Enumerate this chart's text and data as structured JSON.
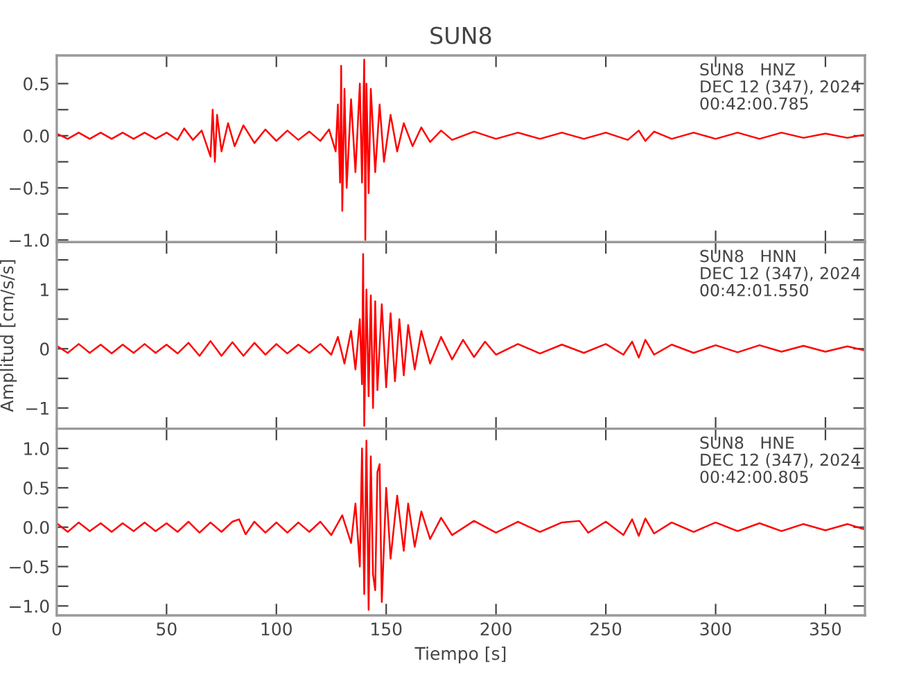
{
  "chart_data": [
    {
      "type": "line",
      "title": "SUN8",
      "tick_labels": "y",
      "xlim": [
        0,
        368
      ],
      "ylim": [
        -1.02,
        0.77
      ],
      "xticks": [
        {
          "value": 0,
          "label": null
        },
        {
          "value": 50,
          "label": null
        },
        {
          "value": 100,
          "label": null
        },
        {
          "value": 150,
          "label": null
        },
        {
          "value": 200,
          "label": null
        },
        {
          "value": 250,
          "label": null
        },
        {
          "value": 300,
          "label": null
        },
        {
          "value": 350,
          "label": null
        }
      ],
      "yticks": [
        {
          "value": 0.5,
          "label": "0.5"
        },
        {
          "value": 0.25,
          "label": null
        },
        {
          "value": 0.0,
          "label": "0.0"
        },
        {
          "value": -0.25,
          "label": null
        },
        {
          "value": -0.5,
          "label": "−0.5"
        },
        {
          "value": -0.75,
          "label": null
        },
        {
          "value": -1.0,
          "label": "−1.0"
        }
      ],
      "annotations": [
        "SUN8   HNZ\nDEC 12 (347), 2024\n00:42:00.785"
      ],
      "series": [
        {
          "color": "#ff0000",
          "x": [
            0,
            5,
            10,
            15,
            20,
            25,
            30,
            35,
            40,
            45,
            50,
            55,
            58,
            62,
            66,
            70,
            71,
            72,
            73,
            75,
            78,
            81,
            85,
            90,
            95,
            100,
            105,
            110,
            115,
            120,
            124,
            127,
            128,
            129,
            129.5,
            130,
            131,
            132,
            134,
            136,
            138,
            139,
            140,
            140.5,
            141,
            142,
            143,
            145,
            147,
            149,
            152,
            155,
            158,
            162,
            166,
            170,
            175,
            180,
            190,
            200,
            210,
            220,
            230,
            240,
            250,
            260,
            265,
            268,
            272,
            280,
            290,
            300,
            310,
            320,
            330,
            340,
            350,
            360,
            368
          ],
          "values": [
            0.02,
            -0.03,
            0.03,
            -0.03,
            0.03,
            -0.03,
            0.03,
            -0.03,
            0.03,
            -0.03,
            0.03,
            -0.04,
            0.07,
            -0.04,
            0.05,
            -0.2,
            0.25,
            -0.25,
            0.2,
            -0.15,
            0.12,
            -0.1,
            0.1,
            -0.07,
            0.06,
            -0.05,
            0.05,
            -0.04,
            0.04,
            -0.05,
            0.06,
            -0.15,
            0.3,
            -0.45,
            0.67,
            -0.72,
            0.45,
            -0.5,
            0.35,
            -0.35,
            0.5,
            -0.45,
            0.73,
            -1.0,
            0.5,
            -0.55,
            0.45,
            -0.35,
            0.3,
            -0.25,
            0.2,
            -0.15,
            0.12,
            -0.1,
            0.08,
            -0.06,
            0.05,
            -0.04,
            0.04,
            -0.03,
            0.03,
            -0.03,
            0.03,
            -0.03,
            0.03,
            -0.04,
            0.05,
            -0.05,
            0.04,
            -0.03,
            0.03,
            -0.03,
            0.03,
            -0.03,
            0.03,
            -0.02,
            0.02,
            -0.02,
            0.01
          ]
        }
      ]
    },
    {
      "type": "line",
      "ylabel": "Amplitud [cm/s/s]",
      "tick_labels": "y",
      "xlim": [
        0,
        368
      ],
      "ylim": [
        -1.35,
        1.8
      ],
      "xticks": [
        {
          "value": 0,
          "label": null
        },
        {
          "value": 50,
          "label": null
        },
        {
          "value": 100,
          "label": null
        },
        {
          "value": 150,
          "label": null
        },
        {
          "value": 200,
          "label": null
        },
        {
          "value": 250,
          "label": null
        },
        {
          "value": 300,
          "label": null
        },
        {
          "value": 350,
          "label": null
        }
      ],
      "yticks": [
        {
          "value": 1.5,
          "label": null
        },
        {
          "value": 1,
          "label": "1"
        },
        {
          "value": 0.5,
          "label": null
        },
        {
          "value": 0,
          "label": "0"
        },
        {
          "value": -0.5,
          "label": null
        },
        {
          "value": -1,
          "label": "−1"
        }
      ],
      "annotations": [
        "SUN8   HNN\nDEC 12 (347), 2024\n00:42:01.550"
      ],
      "series": [
        {
          "color": "#ff0000",
          "x": [
            0,
            5,
            10,
            15,
            20,
            25,
            30,
            35,
            40,
            45,
            50,
            55,
            60,
            65,
            70,
            75,
            80,
            85,
            90,
            95,
            100,
            105,
            110,
            115,
            120,
            125,
            128,
            131,
            134,
            136,
            138,
            139,
            139.5,
            140,
            141,
            142,
            143,
            144,
            145,
            146,
            148,
            150,
            152,
            154,
            156,
            158,
            160,
            163,
            166,
            170,
            175,
            180,
            185,
            190,
            195,
            200,
            210,
            220,
            230,
            240,
            250,
            258,
            262,
            265,
            268,
            272,
            280,
            290,
            300,
            310,
            320,
            330,
            340,
            350,
            360,
            368
          ],
          "values": [
            0.05,
            -0.07,
            0.08,
            -0.07,
            0.07,
            -0.08,
            0.07,
            -0.07,
            0.08,
            -0.07,
            0.07,
            -0.08,
            0.1,
            -0.12,
            0.13,
            -0.12,
            0.11,
            -0.12,
            0.1,
            -0.1,
            0.08,
            -0.08,
            0.07,
            -0.07,
            0.08,
            -0.1,
            0.2,
            -0.25,
            0.3,
            -0.35,
            0.5,
            -0.6,
            1.6,
            -1.3,
            1.0,
            -0.8,
            0.9,
            -1.0,
            0.8,
            -0.7,
            0.75,
            -0.65,
            0.6,
            -0.55,
            0.5,
            -0.45,
            0.4,
            -0.35,
            0.3,
            -0.25,
            0.2,
            -0.18,
            0.15,
            -0.14,
            0.12,
            -0.1,
            0.08,
            -0.08,
            0.07,
            -0.07,
            0.08,
            -0.1,
            0.12,
            -0.15,
            0.15,
            -0.1,
            0.07,
            -0.07,
            0.06,
            -0.06,
            0.06,
            -0.05,
            0.05,
            -0.05,
            0.04,
            -0.03
          ]
        }
      ]
    },
    {
      "type": "line",
      "xlabel": "Tiempo [s]",
      "xlim": [
        0,
        368
      ],
      "ylim": [
        -1.12,
        1.25
      ],
      "xticks": [
        0,
        50,
        100,
        150,
        200,
        250,
        300,
        350
      ],
      "yticks": [
        {
          "value": 1.0,
          "label": "1.0"
        },
        {
          "value": 0.75,
          "label": null
        },
        {
          "value": 0.5,
          "label": "0.5"
        },
        {
          "value": 0.25,
          "label": null
        },
        {
          "value": 0.0,
          "label": "0.0"
        },
        {
          "value": -0.25,
          "label": null
        },
        {
          "value": -0.5,
          "label": "−0.5"
        },
        {
          "value": -0.75,
          "label": null
        },
        {
          "value": -1.0,
          "label": "−1.0"
        }
      ],
      "annotations": [
        "SUN8   HNE\nDEC 12 (347), 2024\n00:42:00.805"
      ],
      "series": [
        {
          "color": "#ff0000",
          "x": [
            0,
            5,
            10,
            15,
            20,
            25,
            30,
            35,
            40,
            45,
            50,
            55,
            60,
            65,
            70,
            75,
            80,
            83,
            86,
            90,
            95,
            100,
            105,
            110,
            115,
            120,
            125,
            130,
            134,
            136,
            138,
            139,
            140,
            141,
            142,
            143,
            144,
            145,
            146,
            147,
            148,
            150,
            152,
            155,
            158,
            160,
            163,
            166,
            170,
            175,
            180,
            190,
            200,
            210,
            220,
            230,
            238,
            242,
            250,
            258,
            262,
            265,
            268,
            272,
            280,
            290,
            300,
            310,
            320,
            330,
            340,
            350,
            360,
            368
          ],
          "values": [
            0.05,
            -0.06,
            0.06,
            -0.05,
            0.05,
            -0.06,
            0.05,
            -0.05,
            0.06,
            -0.05,
            0.05,
            -0.06,
            0.07,
            -0.07,
            0.06,
            -0.06,
            0.07,
            0.1,
            -0.09,
            0.07,
            -0.07,
            0.06,
            -0.07,
            0.06,
            -0.06,
            0.07,
            -0.1,
            0.15,
            -0.2,
            0.3,
            -0.5,
            1.0,
            -0.85,
            1.1,
            -1.05,
            0.9,
            -0.6,
            -0.8,
            0.7,
            0.8,
            -0.95,
            0.5,
            -0.4,
            0.4,
            -0.3,
            0.3,
            -0.25,
            0.2,
            -0.15,
            0.12,
            -0.1,
            0.08,
            -0.07,
            0.07,
            -0.06,
            0.06,
            0.08,
            -0.07,
            0.07,
            -0.1,
            0.1,
            -0.11,
            0.11,
            -0.08,
            0.06,
            -0.06,
            0.06,
            -0.05,
            0.05,
            -0.05,
            0.04,
            -0.04,
            0.04,
            -0.03
          ]
        }
      ]
    }
  ]
}
